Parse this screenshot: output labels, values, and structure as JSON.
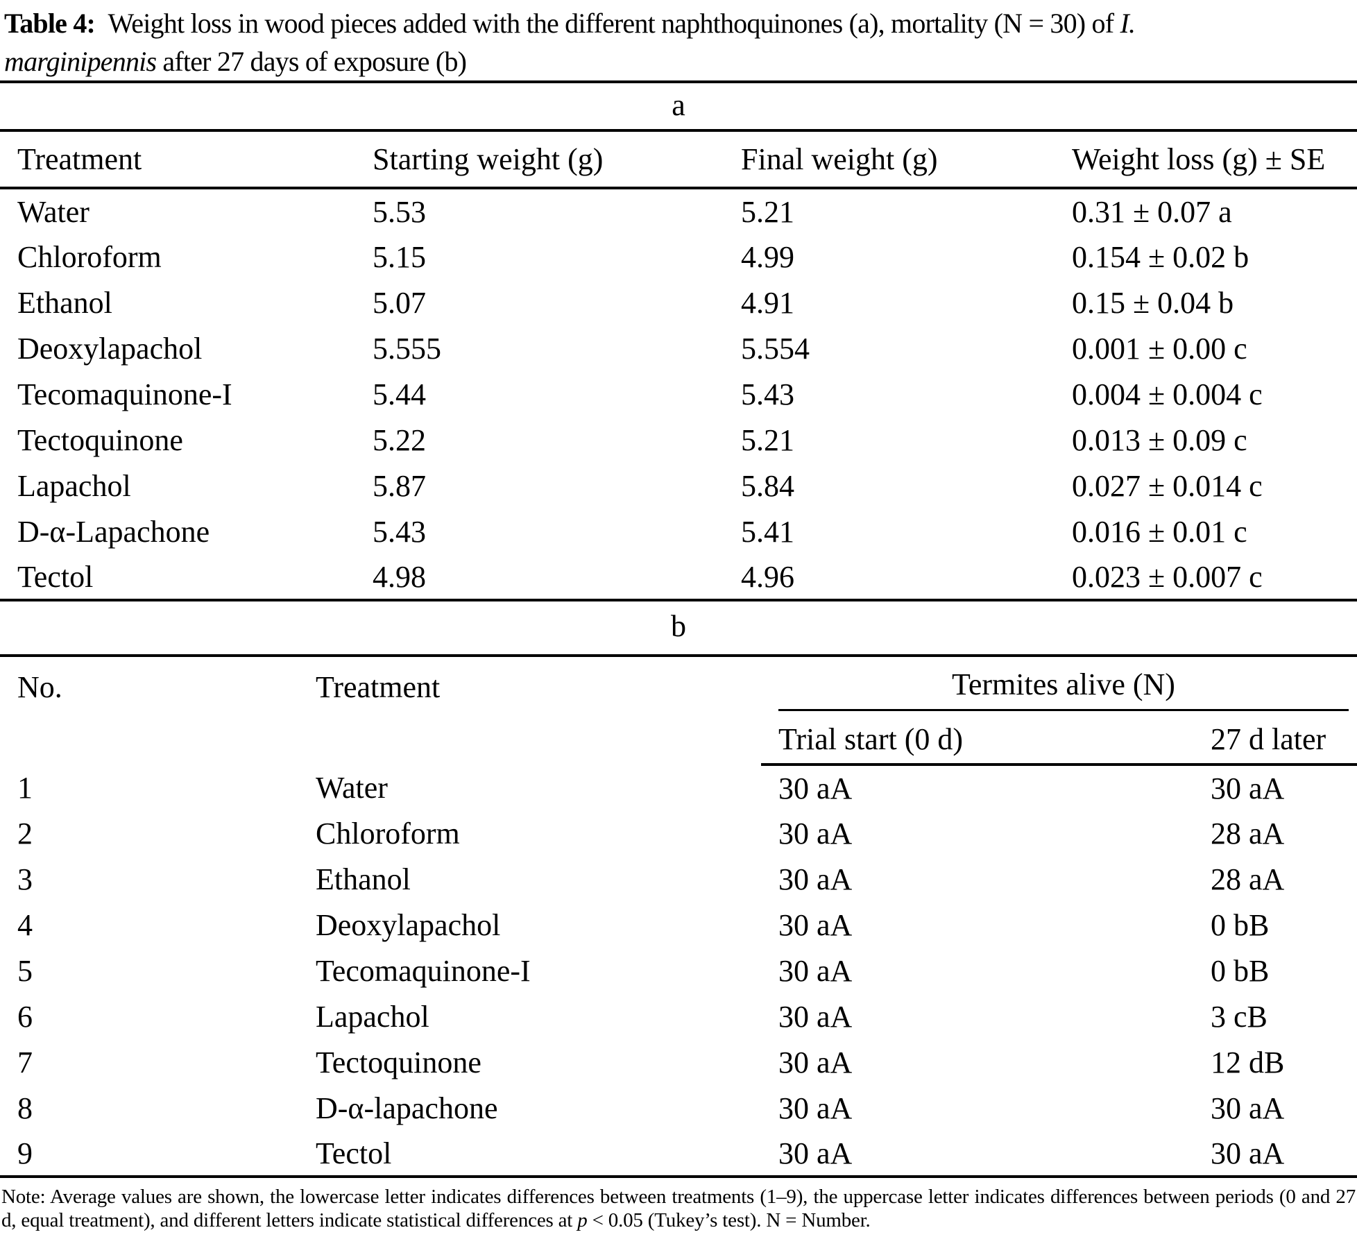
{
  "title": {
    "line1": {
      "label": "Table 4:",
      "text": " Weight loss in wood pieces added with the different naphthoquinones (a), mortality (N = 30) of ",
      "italic": "I."
    },
    "line2": {
      "italic": "marginipennis",
      "text": " after 27 days of exposure (b)"
    }
  },
  "section_a": {
    "label": "a",
    "columns": [
      "Treatment",
      "Starting weight (g)",
      "Final weight (g)",
      "Weight loss (g) ± SE"
    ],
    "rows": [
      {
        "treatment": "Water",
        "starting": "5.53",
        "final": "5.21",
        "loss": "0.31 ± 0.07 a"
      },
      {
        "treatment": "Chloroform",
        "starting": "5.15",
        "final": "4.99",
        "loss": "0.154 ± 0.02 b"
      },
      {
        "treatment": "Ethanol",
        "starting": "5.07",
        "final": "4.91",
        "loss": "0.15 ± 0.04 b"
      },
      {
        "treatment": "Deoxylapachol",
        "starting": "5.555",
        "final": "5.554",
        "loss": "0.001 ± 0.00 c"
      },
      {
        "treatment": "Tecomaquinone-I",
        "starting": "5.44",
        "final": "5.43",
        "loss": "0.004 ± 0.004 c"
      },
      {
        "treatment": "Tectoquinone",
        "starting": "5.22",
        "final": "5.21",
        "loss": "0.013 ± 0.09 c"
      },
      {
        "treatment": "Lapachol",
        "starting": "5.87",
        "final": "5.84",
        "loss": "0.027 ± 0.014 c"
      },
      {
        "treatment": "D-α-Lapachone",
        "starting": "5.43",
        "final": "5.41",
        "loss": "0.016 ± 0.01 c"
      },
      {
        "treatment": "Tectol",
        "starting": "4.98",
        "final": "4.96",
        "loss": "0.023 ± 0.007 c"
      }
    ]
  },
  "section_b": {
    "label": "b",
    "columns": {
      "no": "No.",
      "treatment": "Treatment",
      "group": "Termites alive (N)",
      "sub1": "Trial start (0 d)",
      "sub2": "27 d later"
    },
    "rows": [
      {
        "no": "1",
        "treatment": "Water",
        "start": "30 aA",
        "later": "30 aA"
      },
      {
        "no": "2",
        "treatment": "Chloroform",
        "start": "30 aA",
        "later": "28 aA"
      },
      {
        "no": "3",
        "treatment": "Ethanol",
        "start": "30 aA",
        "later": "28 aA"
      },
      {
        "no": "4",
        "treatment": "Deoxylapachol",
        "start": "30 aA",
        "later": "0 bB"
      },
      {
        "no": "5",
        "treatment": "Tecomaquinone-I",
        "start": "30 aA",
        "later": "0 bB"
      },
      {
        "no": "6",
        "treatment": "Lapachol",
        "start": "30 aA",
        "later": "3 cB"
      },
      {
        "no": "7",
        "treatment": "Tectoquinone",
        "start": "30 aA",
        "later": "12 dB"
      },
      {
        "no": "8",
        "treatment": "D-α-lapachone",
        "start": "30 aA",
        "later": "30 aA"
      },
      {
        "no": "9",
        "treatment": "Tectol",
        "start": "30 aA",
        "later": "30 aA"
      }
    ]
  },
  "note": {
    "segment1": "Note: Average values are shown, the lowercase letter indicates differences between treatments (1–9), the uppercase letter indicates differences between periods (0 and 27 d, equal treatment), and different letters indicate statistical differences at ",
    "italic": "p",
    "segment2": " < 0.05 (Tukey’s test). N = Number."
  }
}
